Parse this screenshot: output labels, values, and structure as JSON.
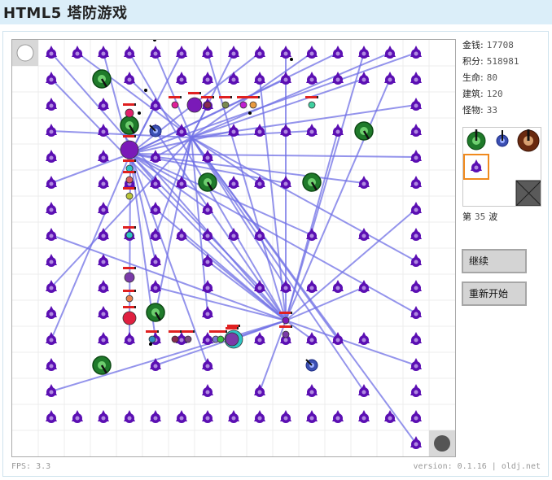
{
  "title": "HTML5  塔防游戏",
  "stats": [
    {
      "label": "金钱:",
      "value": "17708"
    },
    {
      "label": "积分:",
      "value": "518981"
    },
    {
      "label": "生命:",
      "value": "80"
    },
    {
      "label": "建筑:",
      "value": "120"
    },
    {
      "label": "怪物:",
      "value": "33"
    }
  ],
  "wave": {
    "prefix": "第",
    "number": "35",
    "suffix": "波"
  },
  "buttons": {
    "continue": "继续",
    "restart": "重新开始"
  },
  "footer": {
    "fps": "FPS: 3.3",
    "version": "version: 0.1.16 | oldj.net"
  },
  "palette": {
    "items": [
      "green-cannon-tower",
      "blue-laser-tower",
      "brown-heavy-tower",
      "purple-arrow-tower",
      "empty-slot",
      "empty-slot",
      "empty-slot",
      "empty-slot",
      "wall-block"
    ],
    "selected_index": 3
  },
  "colors": {
    "purple_tower": "#5b0fb3",
    "laser_beam": "#7070e6",
    "green_tower": "#1f7a2a",
    "blue_tower": "#3b4fb3",
    "selection": "#f08a1e",
    "enemy_hp": "#e02020"
  }
}
